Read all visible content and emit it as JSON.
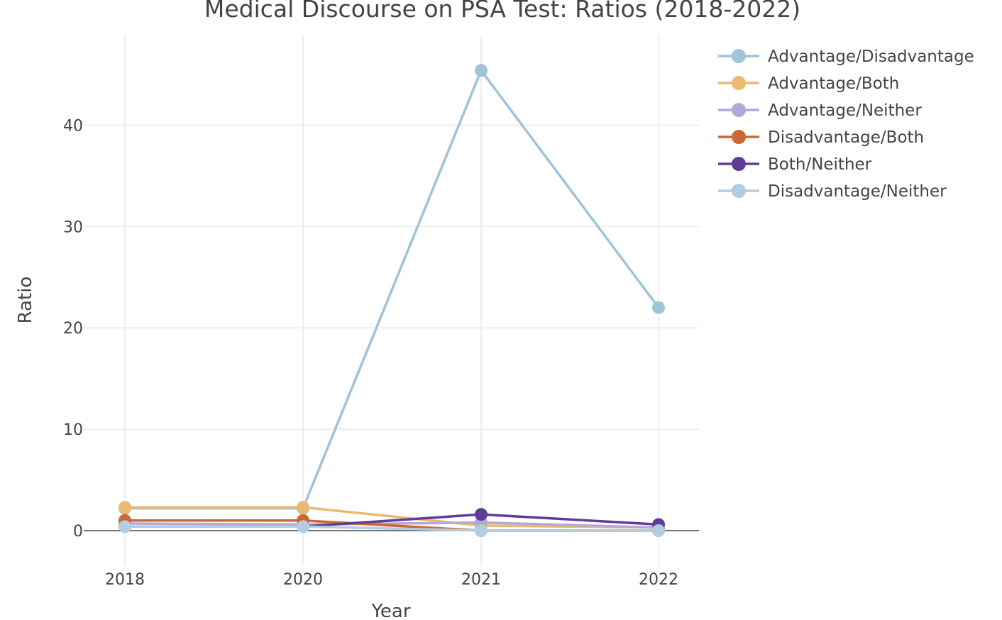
{
  "chart_data": {
    "type": "line",
    "title": "Medical Discourse on PSA Test: Ratios (2018-2022)",
    "xlabel": "Year",
    "ylabel": "Ratio",
    "categories": [
      "2018",
      "2020",
      "2021",
      "2022"
    ],
    "yticks": [
      0,
      10,
      20,
      30,
      40
    ],
    "ylim": [
      -3.5,
      49
    ],
    "grid": true,
    "legend_position": "top-right",
    "series": [
      {
        "name": "Advantage/Disadvantage",
        "color": "#9fc3d9",
        "values": [
          2.2,
          2.2,
          45.4,
          22.0
        ]
      },
      {
        "name": "Advantage/Both",
        "color": "#ebb970",
        "values": [
          2.3,
          2.3,
          0.5,
          0.3
        ]
      },
      {
        "name": "Advantage/Neither",
        "color": "#b2a9d6",
        "values": [
          0.7,
          0.6,
          0.8,
          0.3
        ]
      },
      {
        "name": "Disadvantage/Both",
        "color": "#cd6830",
        "values": [
          1.0,
          1.0,
          0.0,
          0.0
        ]
      },
      {
        "name": "Both/Neither",
        "color": "#5e3c99",
        "values": [
          0.4,
          0.4,
          1.6,
          0.6
        ]
      },
      {
        "name": "Disadvantage/Neither",
        "color": "#b2cce0",
        "values": [
          0.4,
          0.4,
          0.0,
          0.0
        ]
      }
    ]
  }
}
